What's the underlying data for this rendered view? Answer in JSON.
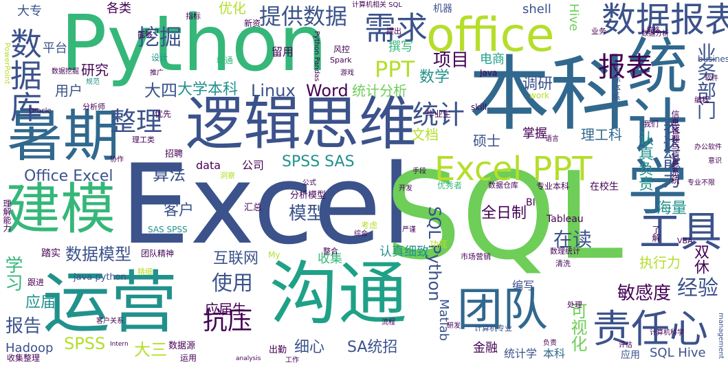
{
  "palette": {
    "background": "#ffffff",
    "dark_purple": "#440154",
    "indigo": "#3b528b",
    "teal_blue": "#31688e",
    "teal": "#21918c",
    "sea_green": "#1fa187",
    "green": "#35b779",
    "light_green": "#6ece58",
    "lime": "#b5de2b",
    "yellow": "#fde725"
  },
  "words": [
    "Excel",
    "SQL",
    "Python",
    "本科",
    "逻辑思维",
    "沟通",
    "统计学",
    "运营",
    "暑期",
    "office",
    "建模",
    "数据报表",
    "团队",
    "责任心",
    "工具",
    "Excel PPT",
    "数据库",
    "需求",
    "提供数据",
    "报表",
    "整理",
    "统计",
    "挖掘",
    "PPT",
    "项目",
    "大四",
    "大学本科",
    "统计分析",
    "Linux",
    "Word",
    "抗压",
    "使用",
    "经验",
    "SPSS SAS",
    "Office Excel",
    "算法",
    "SQL Python",
    "模型",
    "数据模型",
    "在读",
    "敏感度",
    "表达能力",
    "业务部门",
    "认真负责",
    "全日制",
    "海量",
    "双休",
    "执行力",
    "学习",
    "报告",
    "应届",
    "SPSS",
    "Hadoop",
    "大三",
    "细心",
    "SA统招",
    "Matlab",
    "可视化",
    "金融",
    "统计学",
    "本科",
    "SQL Hive",
    "应用",
    "互联网",
    "应届生",
    "收集",
    "认真细致",
    "客户",
    "data",
    "公司",
    "文档",
    "硕士",
    "掌握",
    "理工科",
    "数学",
    "调研",
    "研究",
    "用户",
    "电商",
    "优化",
    "平台",
    "大专",
    "各类",
    "撰写",
    "留用",
    "shell",
    "Hive",
    "机器",
    "business",
    "Tableau",
    "BI",
    "编写",
    "风控",
    "新资",
    "精通",
    "设计",
    "Java",
    "work",
    "skill",
    "指标体系",
    "毕业生",
    "分析模型",
    "汇总",
    "优秀者",
    "数据仓库",
    "专业本科",
    "在校生",
    "java python",
    "SAS SPSS",
    "团队精神",
    "招聘",
    "优先",
    "My",
    "考虑",
    "计算机专业",
    "management",
    "Intern",
    "analysis",
    "数据源",
    "运用",
    "出勤",
    "收集整理",
    "客户关系",
    "市场营销",
    "数理统计",
    "清洗",
    "分析师",
    "PowerPoint",
    "计算机相关 SQL",
    "Python Pandas",
    "跟进",
    "理解能力",
    "踏实",
    "精细",
    "功底",
    "我们",
    "VBA",
    "了解",
    "编程",
    "语言",
    "指标",
    "协作",
    "理工类",
    "整合",
    "洞察",
    "公式",
    "手段",
    "能够",
    "Oracle",
    "专业不限",
    "信息管理与信息系统",
    "提出",
    "规范",
    "综合",
    "Spark",
    "数据挖掘",
    "游戏",
    "推广",
    "研发",
    "业务",
    "资格",
    "流程",
    "处理",
    "开发",
    "计算机科学",
    "评估",
    "严谨",
    "数据分析",
    "负责",
    "工作",
    "办公软件",
    "意识",
    "软件",
    "分析方法",
    "管理",
    "销售",
    "上述",
    "熟练掌握",
    "熟悉",
    "能力"
  ]
}
